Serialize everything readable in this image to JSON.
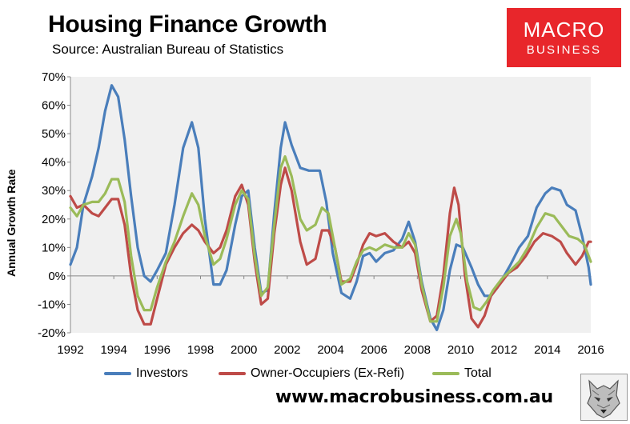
{
  "header": {
    "title": "Housing Finance Growth",
    "subtitle": "Source: Australian Bureau of Statistics"
  },
  "logo": {
    "line1": "MACRO",
    "line2": "BUSINESS",
    "color": "#e8262b"
  },
  "footer": {
    "url": "www.macrobusiness.com.au"
  },
  "chart_data": {
    "type": "line",
    "title": "Housing Finance Growth",
    "subtitle": "Source: Australian Bureau of Statistics",
    "xlabel": "",
    "ylabel": "Annual Growth Rate",
    "xlim": [
      1992,
      2016
    ],
    "ylim": [
      -20,
      70
    ],
    "x_ticks": [
      "1992",
      "1994",
      "1996",
      "1998",
      "2000",
      "2002",
      "2004",
      "2006",
      "2008",
      "2010",
      "2012",
      "2014",
      "2016"
    ],
    "y_ticks": [
      "70%",
      "60%",
      "50%",
      "40%",
      "30%",
      "20%",
      "10%",
      "0%",
      "-10%",
      "-20%"
    ],
    "grid": false,
    "plot_background": "#f0f0f0",
    "legend_position": "bottom",
    "series": [
      {
        "name": "Investors",
        "color": "#4a7ebb",
        "points": [
          [
            1992.0,
            4
          ],
          [
            1992.3,
            10
          ],
          [
            1992.6,
            25
          ],
          [
            1993.0,
            35
          ],
          [
            1993.3,
            45
          ],
          [
            1993.6,
            58
          ],
          [
            1993.9,
            67
          ],
          [
            1994.2,
            63
          ],
          [
            1994.5,
            48
          ],
          [
            1994.8,
            28
          ],
          [
            1995.1,
            10
          ],
          [
            1995.4,
            0
          ],
          [
            1995.7,
            -2
          ],
          [
            1996.0,
            2
          ],
          [
            1996.4,
            8
          ],
          [
            1996.8,
            25
          ],
          [
            1997.2,
            45
          ],
          [
            1997.6,
            54
          ],
          [
            1997.9,
            45
          ],
          [
            1998.2,
            20
          ],
          [
            1998.6,
            -3
          ],
          [
            1998.9,
            -3
          ],
          [
            1999.2,
            2
          ],
          [
            1999.6,
            18
          ],
          [
            1999.9,
            28
          ],
          [
            2000.2,
            30
          ],
          [
            2000.5,
            10
          ],
          [
            2000.8,
            -6
          ],
          [
            2001.1,
            -5
          ],
          [
            2001.4,
            22
          ],
          [
            2001.7,
            45
          ],
          [
            2001.9,
            54
          ],
          [
            2002.2,
            46
          ],
          [
            2002.6,
            38
          ],
          [
            2003.0,
            37
          ],
          [
            2003.5,
            37
          ],
          [
            2003.8,
            26
          ],
          [
            2004.1,
            8
          ],
          [
            2004.5,
            -6
          ],
          [
            2004.9,
            -8
          ],
          [
            2005.2,
            -2
          ],
          [
            2005.5,
            7
          ],
          [
            2005.8,
            8
          ],
          [
            2006.1,
            5
          ],
          [
            2006.5,
            8
          ],
          [
            2006.9,
            9
          ],
          [
            2007.3,
            13
          ],
          [
            2007.6,
            19
          ],
          [
            2007.9,
            12
          ],
          [
            2008.2,
            -2
          ],
          [
            2008.6,
            -15
          ],
          [
            2008.9,
            -19
          ],
          [
            2009.2,
            -12
          ],
          [
            2009.5,
            2
          ],
          [
            2009.8,
            11
          ],
          [
            2010.1,
            10
          ],
          [
            2010.5,
            3
          ],
          [
            2010.8,
            -3
          ],
          [
            2011.1,
            -7
          ],
          [
            2011.4,
            -7
          ],
          [
            2011.7,
            -4
          ],
          [
            2012.0,
            0
          ],
          [
            2012.3,
            4
          ],
          [
            2012.7,
            10
          ],
          [
            2013.1,
            14
          ],
          [
            2013.5,
            24
          ],
          [
            2013.9,
            29
          ],
          [
            2014.2,
            31
          ],
          [
            2014.6,
            30
          ],
          [
            2014.9,
            25
          ],
          [
            2015.3,
            23
          ],
          [
            2015.6,
            14
          ],
          [
            2015.9,
            3
          ],
          [
            2016.0,
            -3
          ]
        ]
      },
      {
        "name": "Owner-Occupiers (Ex-Refi)",
        "color": "#be4b48",
        "points": [
          [
            1992.0,
            28
          ],
          [
            1992.3,
            24
          ],
          [
            1992.6,
            25
          ],
          [
            1993.0,
            22
          ],
          [
            1993.3,
            21
          ],
          [
            1993.6,
            24
          ],
          [
            1993.9,
            27
          ],
          [
            1994.2,
            27
          ],
          [
            1994.5,
            18
          ],
          [
            1994.8,
            0
          ],
          [
            1995.1,
            -12
          ],
          [
            1995.4,
            -17
          ],
          [
            1995.7,
            -17
          ],
          [
            1996.0,
            -8
          ],
          [
            1996.4,
            4
          ],
          [
            1996.8,
            10
          ],
          [
            1997.2,
            15
          ],
          [
            1997.6,
            18
          ],
          [
            1997.9,
            16
          ],
          [
            1998.2,
            12
          ],
          [
            1998.6,
            8
          ],
          [
            1998.9,
            10
          ],
          [
            1999.2,
            16
          ],
          [
            1999.6,
            28
          ],
          [
            1999.9,
            32
          ],
          [
            2000.2,
            25
          ],
          [
            2000.5,
            5
          ],
          [
            2000.8,
            -10
          ],
          [
            2001.1,
            -8
          ],
          [
            2001.4,
            15
          ],
          [
            2001.7,
            32
          ],
          [
            2001.9,
            38
          ],
          [
            2002.2,
            30
          ],
          [
            2002.6,
            12
          ],
          [
            2002.9,
            4
          ],
          [
            2003.3,
            6
          ],
          [
            2003.6,
            16
          ],
          [
            2003.9,
            16
          ],
          [
            2004.2,
            10
          ],
          [
            2004.5,
            -2
          ],
          [
            2004.9,
            -2
          ],
          [
            2005.2,
            4
          ],
          [
            2005.5,
            11
          ],
          [
            2005.8,
            15
          ],
          [
            2006.1,
            14
          ],
          [
            2006.5,
            15
          ],
          [
            2006.9,
            12
          ],
          [
            2007.3,
            10
          ],
          [
            2007.6,
            12
          ],
          [
            2007.9,
            8
          ],
          [
            2008.2,
            -5
          ],
          [
            2008.6,
            -16
          ],
          [
            2008.9,
            -14
          ],
          [
            2009.2,
            0
          ],
          [
            2009.5,
            22
          ],
          [
            2009.7,
            31
          ],
          [
            2009.9,
            25
          ],
          [
            2010.2,
            0
          ],
          [
            2010.5,
            -15
          ],
          [
            2010.8,
            -18
          ],
          [
            2011.1,
            -14
          ],
          [
            2011.4,
            -7
          ],
          [
            2011.8,
            -3
          ],
          [
            2012.2,
            1
          ],
          [
            2012.6,
            3
          ],
          [
            2013.0,
            7
          ],
          [
            2013.4,
            12
          ],
          [
            2013.8,
            15
          ],
          [
            2014.2,
            14
          ],
          [
            2014.6,
            12
          ],
          [
            2014.9,
            8
          ],
          [
            2015.3,
            4
          ],
          [
            2015.6,
            7
          ],
          [
            2015.9,
            12
          ],
          [
            2016.0,
            12
          ]
        ]
      },
      {
        "name": "Total",
        "color": "#9bbb59",
        "points": [
          [
            1992.0,
            24
          ],
          [
            1992.3,
            21
          ],
          [
            1992.6,
            25
          ],
          [
            1993.0,
            26
          ],
          [
            1993.3,
            26
          ],
          [
            1993.6,
            29
          ],
          [
            1993.9,
            34
          ],
          [
            1994.2,
            34
          ],
          [
            1994.5,
            26
          ],
          [
            1994.8,
            7
          ],
          [
            1995.1,
            -7
          ],
          [
            1995.4,
            -12
          ],
          [
            1995.7,
            -12
          ],
          [
            1996.0,
            -4
          ],
          [
            1996.4,
            5
          ],
          [
            1996.8,
            12
          ],
          [
            1997.2,
            21
          ],
          [
            1997.6,
            29
          ],
          [
            1997.9,
            25
          ],
          [
            1998.2,
            14
          ],
          [
            1998.6,
            4
          ],
          [
            1998.9,
            6
          ],
          [
            1999.2,
            13
          ],
          [
            1999.6,
            25
          ],
          [
            1999.9,
            30
          ],
          [
            2000.2,
            27
          ],
          [
            2000.5,
            7
          ],
          [
            2000.8,
            -7
          ],
          [
            2001.1,
            -4
          ],
          [
            2001.4,
            18
          ],
          [
            2001.7,
            38
          ],
          [
            2001.9,
            42
          ],
          [
            2002.2,
            35
          ],
          [
            2002.6,
            20
          ],
          [
            2002.9,
            16
          ],
          [
            2003.3,
            18
          ],
          [
            2003.6,
            24
          ],
          [
            2003.9,
            22
          ],
          [
            2004.2,
            10
          ],
          [
            2004.5,
            -3
          ],
          [
            2004.9,
            -1
          ],
          [
            2005.2,
            5
          ],
          [
            2005.5,
            9
          ],
          [
            2005.8,
            10
          ],
          [
            2006.1,
            9
          ],
          [
            2006.5,
            11
          ],
          [
            2006.9,
            10
          ],
          [
            2007.3,
            10
          ],
          [
            2007.6,
            15
          ],
          [
            2007.9,
            11
          ],
          [
            2008.2,
            -3
          ],
          [
            2008.6,
            -16
          ],
          [
            2008.9,
            -16
          ],
          [
            2009.2,
            -4
          ],
          [
            2009.5,
            14
          ],
          [
            2009.8,
            20
          ],
          [
            2010.0,
            15
          ],
          [
            2010.3,
            -2
          ],
          [
            2010.6,
            -11
          ],
          [
            2010.9,
            -12
          ],
          [
            2011.2,
            -9
          ],
          [
            2011.5,
            -5
          ],
          [
            2011.9,
            -1
          ],
          [
            2012.3,
            2
          ],
          [
            2012.7,
            5
          ],
          [
            2013.1,
            10
          ],
          [
            2013.5,
            17
          ],
          [
            2013.9,
            22
          ],
          [
            2014.3,
            21
          ],
          [
            2014.7,
            17
          ],
          [
            2015.0,
            14
          ],
          [
            2015.4,
            13
          ],
          [
            2015.7,
            11
          ],
          [
            2016.0,
            5
          ]
        ]
      }
    ]
  }
}
